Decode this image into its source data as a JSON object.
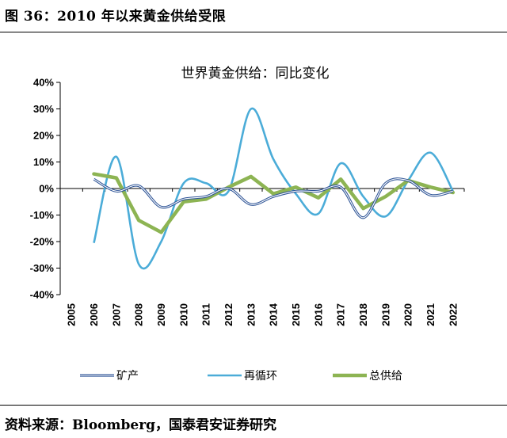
{
  "figure": {
    "title": "图 36：2010 年以来黄金供给受限",
    "source": "资料来源：Bloomberg，国泰君安证券研究"
  },
  "chart_data": {
    "type": "line",
    "title": "世界黄金供给：同比变化",
    "categories": [
      "2005",
      "2006",
      "2007",
      "2008",
      "2009",
      "2010",
      "2011",
      "2012",
      "2013",
      "2014",
      "2015",
      "2016",
      "2017",
      "2018",
      "2019",
      "2020",
      "2021",
      "2022"
    ],
    "y_ticks": [
      "40%",
      "30%",
      "20%",
      "10%",
      "0%",
      "-10%",
      "-20%",
      "-30%",
      "-40%"
    ],
    "ylim": [
      -40,
      40
    ],
    "legend_position": "bottom",
    "series": [
      {
        "name": "矿产",
        "style": "double",
        "color": "#2f5597",
        "values": [
          null,
          3.5,
          -1.0,
          1.0,
          -7.0,
          -4.0,
          -3.0,
          0.0,
          -6.0,
          -3.0,
          -1.0,
          -1.0,
          0.5,
          -11.0,
          2.0,
          3.0,
          -2.5,
          -1.0
        ]
      },
      {
        "name": "再循环",
        "style": "solid",
        "color": "#4bacd8",
        "values": [
          null,
          -20.5,
          12.0,
          -28.5,
          -20.0,
          2.0,
          2.0,
          -1.0,
          30.0,
          11.0,
          -2.0,
          -9.5,
          9.5,
          -3.0,
          -10.5,
          3.0,
          13.5,
          -1.0
        ]
      },
      {
        "name": "总供给",
        "style": "thick",
        "color": "#8db453",
        "values": [
          null,
          5.5,
          4.0,
          -12.0,
          -16.5,
          -5.0,
          -4.0,
          0.5,
          4.5,
          -2.0,
          0.5,
          -3.5,
          3.5,
          -7.5,
          -3.0,
          3.0,
          0.5,
          -1.5
        ]
      }
    ]
  }
}
